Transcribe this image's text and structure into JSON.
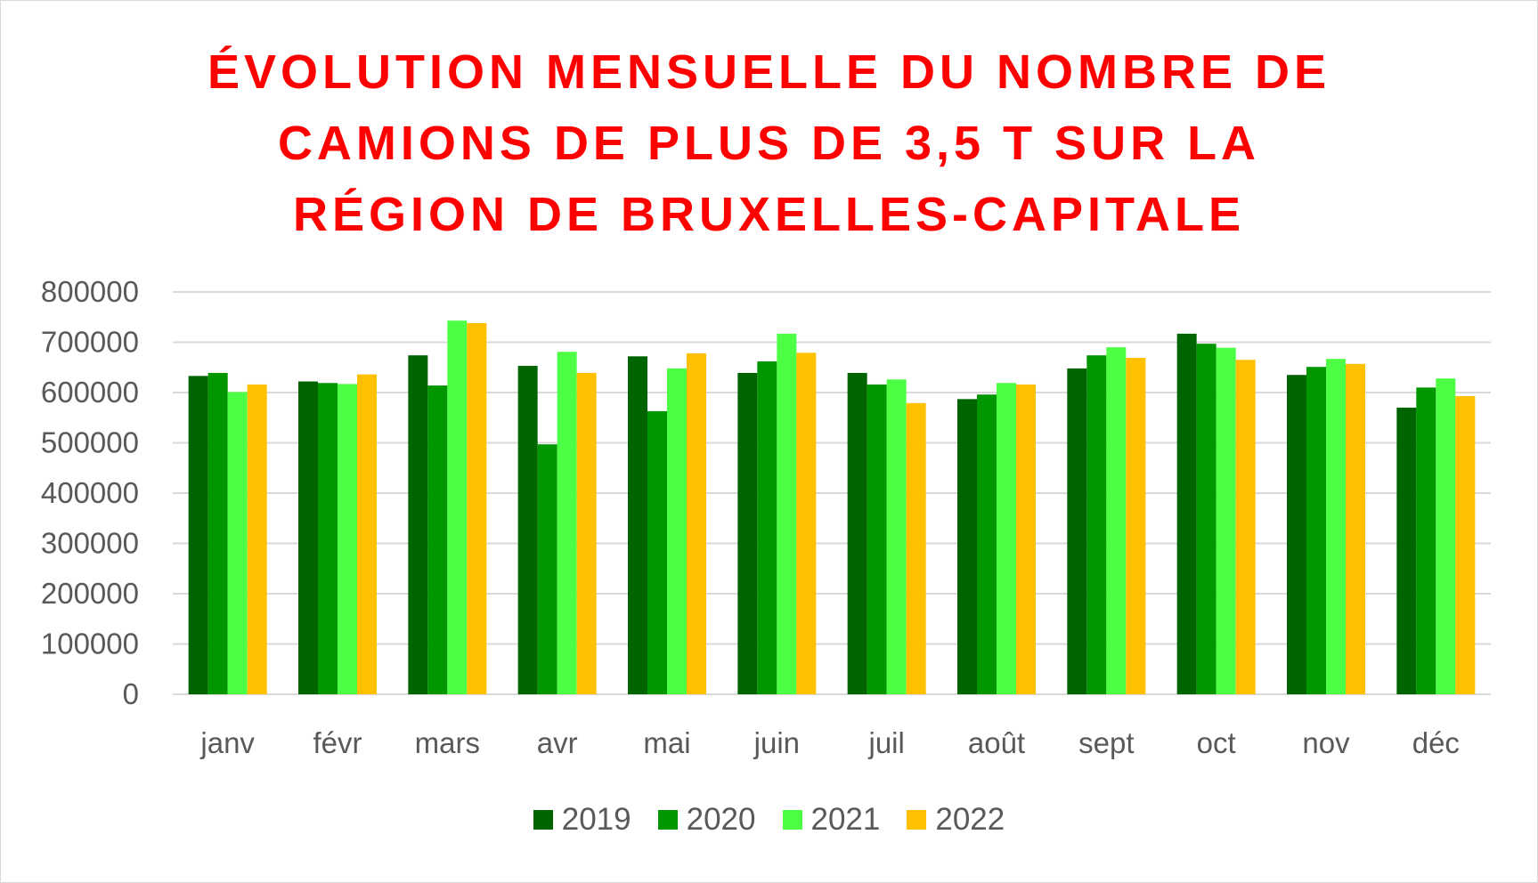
{
  "chart_data": {
    "type": "bar",
    "title": "ÉVOLUTION MENSUELLE DU NOMBRE DE CAMIONS DE PLUS DE 3,5 T SUR LA RÉGION DE BRUXELLES-CAPITALE",
    "title_lines": [
      "ÉVOLUTION MENSUELLE DU NOMBRE DE",
      "CAMIONS DE PLUS DE 3,5 T SUR LA",
      "RÉGION DE BRUXELLES-CAPITALE"
    ],
    "title_color": "#ff0000",
    "categories": [
      "janv",
      "févr",
      "mars",
      "avr",
      "mai",
      "juin",
      "juil",
      "août",
      "sept",
      "oct",
      "nov",
      "déc"
    ],
    "series": [
      {
        "name": "2019",
        "color": "#006400",
        "values": [
          633000,
          622000,
          674000,
          653000,
          672000,
          639000,
          639000,
          587000,
          648000,
          717000,
          635000,
          570000
        ]
      },
      {
        "name": "2020",
        "color": "#009600",
        "values": [
          639000,
          619000,
          614000,
          497000,
          563000,
          662000,
          616000,
          596000,
          674000,
          697000,
          651000,
          610000
        ]
      },
      {
        "name": "2021",
        "color": "#4cff44",
        "values": [
          601000,
          617000,
          743000,
          681000,
          648000,
          717000,
          626000,
          619000,
          690000,
          689000,
          667000,
          628000
        ]
      },
      {
        "name": "2022",
        "color": "#ffc000",
        "values": [
          616000,
          636000,
          738000,
          639000,
          678000,
          679000,
          579000,
          616000,
          669000,
          665000,
          657000,
          593000
        ]
      }
    ],
    "yticks": [
      "0",
      "100000",
      "200000",
      "300000",
      "400000",
      "500000",
      "600000",
      "700000",
      "800000"
    ],
    "ylim": [
      0,
      800000
    ],
    "xlabel": "",
    "ylabel": "",
    "grid": true,
    "legend_position": "bottom"
  }
}
